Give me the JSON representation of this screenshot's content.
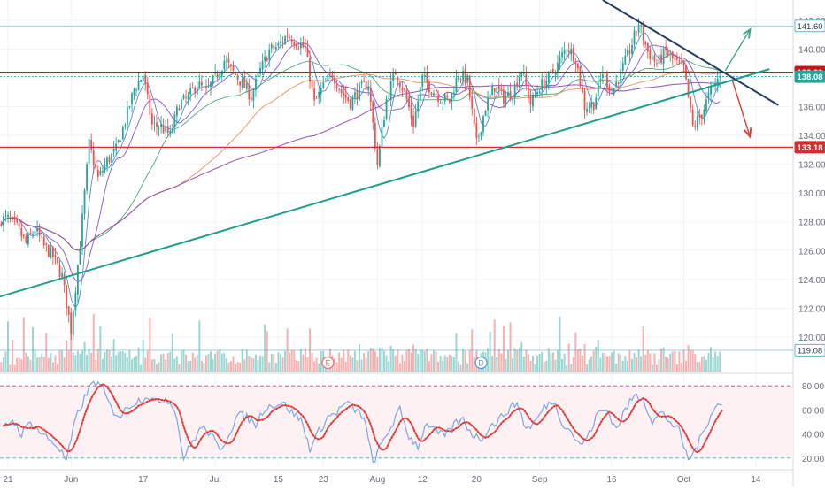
{
  "chart_data": {
    "type": "candlestick",
    "price_axis": {
      "ylim": [
        117.6,
        143.4
      ],
      "ticks": [
        120,
        122,
        124,
        126,
        128,
        130,
        132,
        134,
        136,
        138,
        140,
        142
      ],
      "tick_labels": [
        "120.00",
        "122.00",
        "124.00",
        "126.00",
        "128.00",
        "130.00",
        "132.00",
        "134.00",
        "136.00",
        "138.00",
        "140.00",
        "142.00"
      ]
    },
    "time_axis": {
      "labels": [
        "21",
        "Jun",
        "17",
        "Jul",
        "15",
        "23",
        "Aug",
        "12",
        "20",
        "Sep",
        "16",
        "Oct",
        "14"
      ],
      "label_index": [
        0,
        7,
        15,
        23,
        30,
        35,
        41,
        46,
        52,
        59,
        67,
        75,
        83
      ],
      "total_bars": 86,
      "last_data_index": 79.5
    },
    "levels": [
      {
        "label": "141.60",
        "value": 141.6,
        "role": "upper-reference",
        "color": "#5bb3d1"
      },
      {
        "label": "138.39",
        "value": 138.39,
        "role": "resistance",
        "color": "#c81414"
      },
      {
        "label": "138.08",
        "value": 138.08,
        "role": "last-price",
        "color": "#26a69a"
      },
      {
        "label": "133.18",
        "value": 133.18,
        "role": "support",
        "color": "#d32f2f"
      },
      {
        "label": "119.08",
        "value": 119.08,
        "role": "volume-level",
        "color": "#5bb3d1"
      }
    ],
    "trendlines": [
      {
        "role": "rising-support",
        "color": "#1f9e8a",
        "points": [
          [
            -2,
            122.6
          ],
          [
            84.5,
            138.6
          ]
        ]
      },
      {
        "role": "falling-resistance",
        "color": "#283c64",
        "points": [
          [
            66,
            143.4
          ],
          [
            85.5,
            136.1
          ]
        ]
      }
    ],
    "projection_arrows": [
      {
        "role": "bullish",
        "color": "#3ea88d",
        "points": [
          [
            79.6,
            138.5
          ],
          [
            82.3,
            141.3
          ]
        ]
      },
      {
        "role": "bearish",
        "color": "#e53935",
        "points": [
          [
            80.4,
            137.8
          ],
          [
            82.3,
            134.0
          ]
        ]
      }
    ],
    "price_series": {
      "x": [
        0,
        1,
        2,
        3,
        4,
        5,
        6,
        7,
        8,
        9,
        10,
        11,
        12,
        13,
        14,
        15,
        16,
        17,
        18,
        19,
        20,
        21,
        22,
        23,
        24,
        25,
        26,
        27,
        28,
        29,
        30,
        31,
        32,
        33,
        34,
        35,
        36,
        37,
        38,
        39,
        40,
        41,
        42,
        43,
        44,
        45,
        46,
        47,
        48,
        49,
        50,
        51,
        52,
        53,
        54,
        55,
        56,
        57,
        58,
        59,
        60,
        61,
        62,
        63,
        64,
        65,
        66,
        67,
        68,
        69,
        70,
        71,
        72,
        73,
        74,
        75,
        76,
        77,
        78,
        79
      ],
      "close": [
        128.2,
        127.6,
        126.5,
        127.5,
        126.3,
        125.6,
        124.2,
        120.5,
        126.5,
        133.4,
        131.0,
        132.2,
        133.0,
        135.0,
        137.2,
        138.2,
        134.7,
        134.6,
        134.0,
        136.2,
        136.6,
        137.6,
        137.0,
        138.0,
        139.2,
        138.4,
        137.6,
        136.7,
        138.5,
        139.9,
        140.2,
        141.0,
        140.5,
        140.0,
        136.2,
        137.4,
        138.3,
        137.0,
        136.3,
        137.2,
        137.6,
        132.0,
        136.5,
        138.4,
        137.0,
        134.8,
        138.0,
        137.2,
        136.6,
        136.4,
        138.3,
        137.8,
        133.4,
        136.0,
        137.4,
        136.6,
        137.0,
        138.6,
        136.2,
        137.4,
        138.0,
        138.9,
        140.2,
        139.4,
        136.0,
        136.2,
        138.4,
        137.0,
        138.3,
        139.9,
        141.8,
        139.8,
        139.0,
        139.8,
        139.1,
        138.6,
        134.6,
        135.5,
        137.1,
        138.1
      ]
    },
    "oscillator": {
      "ylim": [
        12.5,
        87.5
      ],
      "ticks": [
        20,
        40,
        60,
        80
      ],
      "tick_labels": [
        "20.00",
        "40.00",
        "60.00",
        "80.00"
      ],
      "overbought": 80,
      "oversold": 20,
      "line_color": "#7fa6e0",
      "signal_color": "#e53935",
      "values": [
        45,
        52,
        40,
        50,
        42,
        36,
        30,
        18,
        52,
        70,
        84,
        78,
        60,
        55,
        64,
        68,
        72,
        66,
        70,
        62,
        20,
        34,
        46,
        40,
        26,
        40,
        56,
        54,
        48,
        62,
        64,
        66,
        58,
        52,
        28,
        42,
        54,
        58,
        66,
        60,
        54,
        16,
        32,
        46,
        60,
        38,
        30,
        50,
        42,
        38,
        48,
        52,
        40,
        36,
        46,
        52,
        60,
        66,
        44,
        50,
        62,
        68,
        50,
        42,
        30,
        40,
        58,
        60,
        44,
        60,
        72,
        70,
        50,
        58,
        50,
        42,
        18,
        30,
        48,
        64
      ]
    },
    "event_markers": [
      {
        "label": "E",
        "index": 36,
        "color": "#e57373"
      },
      {
        "label": "D",
        "index": 53,
        "color": "#5b9bd5"
      }
    ]
  }
}
